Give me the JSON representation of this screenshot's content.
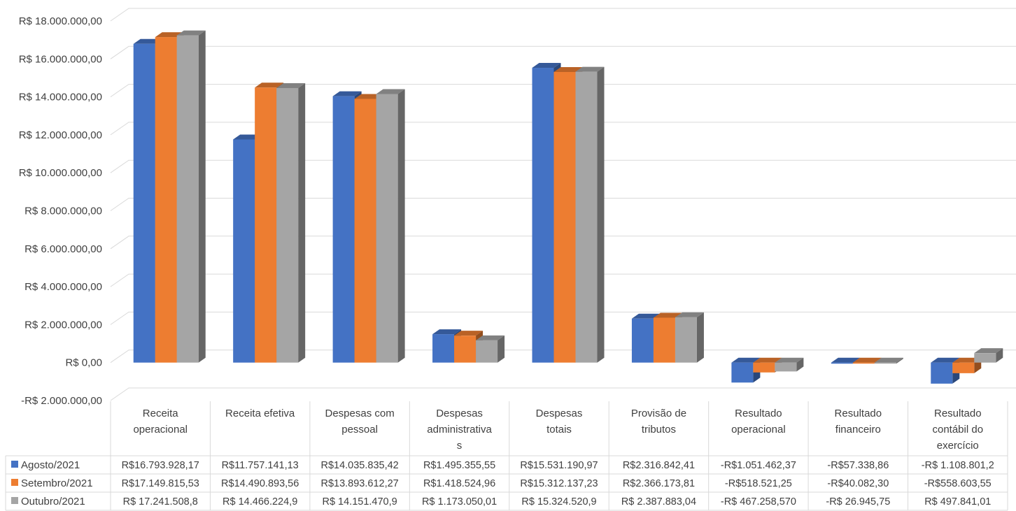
{
  "chart_data": {
    "type": "bar",
    "style": "3d-clustered-column-with-data-table",
    "categories": [
      [
        "Receita",
        "operacional"
      ],
      [
        "Receita efetiva"
      ],
      [
        "Despesas com",
        "pessoal"
      ],
      [
        "Despesas",
        "administrativa",
        "s"
      ],
      [
        "Despesas",
        "totais"
      ],
      [
        "Provisão de",
        "tributos"
      ],
      [
        "Resultado",
        "operacional"
      ],
      [
        "Resultado",
        "financeiro"
      ],
      [
        "Resultado",
        "contábil do",
        "exercício"
      ]
    ],
    "y_ticks": [
      {
        "value": 18000000,
        "label": "R$ 18.000.000,00"
      },
      {
        "value": 16000000,
        "label": "R$ 16.000.000,00"
      },
      {
        "value": 14000000,
        "label": "R$ 14.000.000,00"
      },
      {
        "value": 12000000,
        "label": "R$ 12.000.000,00"
      },
      {
        "value": 10000000,
        "label": "R$ 10.000.000,00"
      },
      {
        "value": 8000000,
        "label": "R$ 8.000.000,00"
      },
      {
        "value": 6000000,
        "label": "R$ 6.000.000,00"
      },
      {
        "value": 4000000,
        "label": "R$ 4.000.000,00"
      },
      {
        "value": 2000000,
        "label": "R$ 2.000.000,00"
      },
      {
        "value": 0,
        "label": "R$ 0,00"
      },
      {
        "value": -2000000,
        "label": "-R$ 2.000.000,00"
      }
    ],
    "ylim": [
      -2000000,
      18000000
    ],
    "grid": true,
    "legend": "in-data-table",
    "series": [
      {
        "name": "Agosto/2021",
        "color": "#4472C4",
        "values": [
          16793928.17,
          11757141.13,
          14035835.42,
          1495355.55,
          15531190.97,
          2316842.41,
          -1051462.37,
          -57338.86,
          -1108801.2
        ],
        "labels": [
          "R$16.793.928,17",
          "R$11.757.141,13",
          "R$14.035.835,42",
          "R$1.495.355,55",
          "R$15.531.190,97",
          "R$2.316.842,41",
          "-R$1.051.462,37",
          "-R$57.338,86",
          "-R$ 1.108.801,2"
        ]
      },
      {
        "name": "Setembro/2021",
        "color": "#ED7D31",
        "values": [
          17149815.53,
          14490893.56,
          13893612.27,
          1418524.96,
          15312137.23,
          2366173.81,
          -518521.25,
          -40082.3,
          -558603.55
        ],
        "labels": [
          "R$17.149.815,53",
          "R$14.490.893,56",
          "R$13.893.612,27",
          "R$1.418.524,96",
          "R$15.312.137,23",
          "R$2.366.173,81",
          "-R$518.521,25",
          "-R$40.082,30",
          "-R$558.603,55"
        ]
      },
      {
        "name": "Outubro/2021",
        "color": "#A5A5A5",
        "values": [
          17241508.8,
          14466224.9,
          14151470.9,
          1173050.01,
          15324520.9,
          2387883.04,
          -467258.57,
          -26945.75,
          497841.01
        ],
        "labels": [
          "R$ 17.241.508,8",
          "R$ 14.466.224,9",
          "R$ 14.151.470,9",
          "R$ 1.173.050,01",
          "R$ 15.324.520,9",
          "R$ 2.387.883,04",
          "-R$ 467.258,570",
          "-R$ 26.945,75",
          "R$ 497.841,01"
        ]
      }
    ]
  }
}
